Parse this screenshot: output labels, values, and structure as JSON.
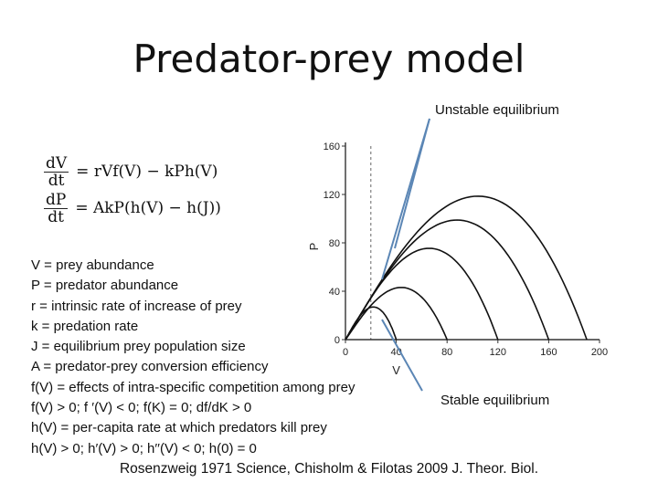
{
  "slide": {
    "title": "Predator-prey model",
    "unstable_label": "Unstable equilibrium",
    "stable_label": "Stable equilibrium",
    "equations": [
      {
        "num": "dV",
        "den": "dt",
        "rhs": "= rVf(V) − kPh(V)"
      },
      {
        "num": "dP",
        "den": "dt",
        "rhs": "= AkP(h(V) − h(J))"
      }
    ],
    "definitions": [
      "V = prey abundance",
      "P = predator abundance",
      "r = intrinsic rate of increase of prey",
      "k = predation rate",
      "J = equilibrium prey population size",
      "A = predator-prey conversion efficiency",
      "f(V) = effects of intra-specific competition among prey",
      "f(V) > 0; f ′(V) < 0; f(K) = 0; df/dK > 0",
      "h(V) = per-capita rate at which predators kill prey",
      "h(V) > 0; h′(V) > 0; h′′(V) < 0; h(0) = 0"
    ],
    "citation": "Rosenzweig 1971 Science, Chisholm & Filotas 2009 J. Theor. Biol."
  },
  "chart_data": {
    "type": "line",
    "xlabel": "V",
    "ylabel": "P",
    "xlim": [
      0,
      200
    ],
    "ylim": [
      0,
      160
    ],
    "xticks": [
      0,
      40,
      80,
      120,
      160,
      200
    ],
    "yticks": [
      0,
      40,
      80,
      120,
      160
    ],
    "isocline_x": 20,
    "series": [
      {
        "K": 40,
        "peak": 30
      },
      {
        "K": 80,
        "peak": 48
      },
      {
        "K": 120,
        "peak": 84
      },
      {
        "K": 160,
        "peak": 110
      },
      {
        "K": 190,
        "peak": 132
      }
    ]
  }
}
